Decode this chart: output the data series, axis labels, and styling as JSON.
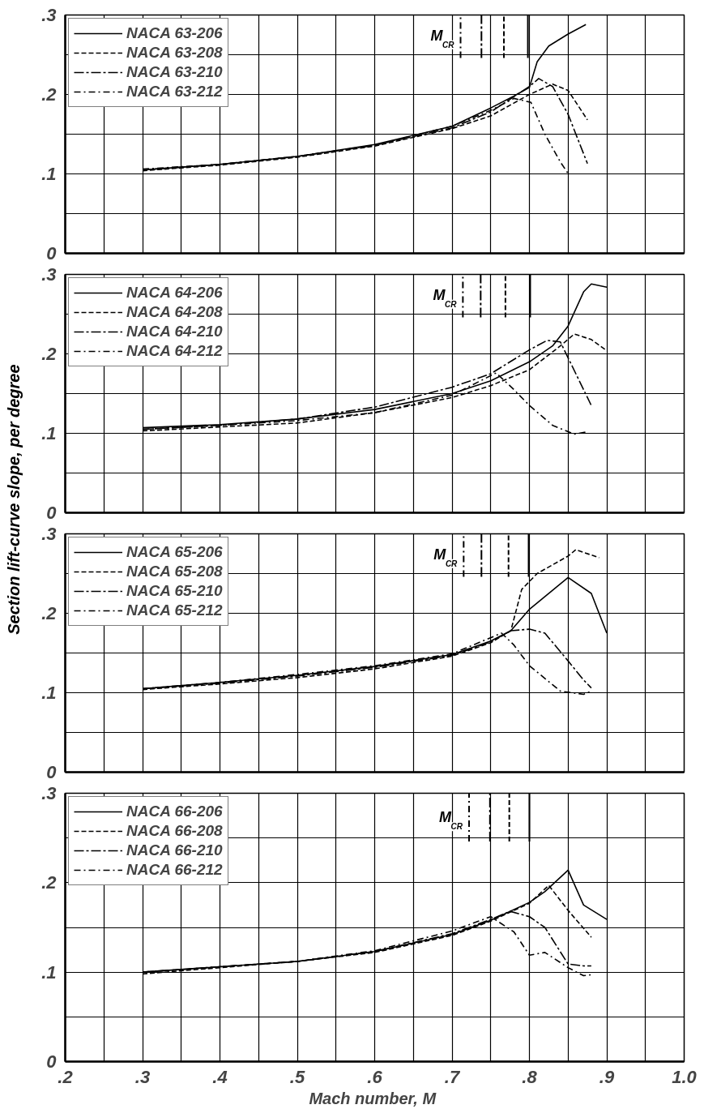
{
  "chart_data": [
    {
      "type": "line",
      "xlim": [
        0.2,
        1.0
      ],
      "ylim": [
        0,
        0.3
      ],
      "grid": true,
      "legend": "top left",
      "tick_labels": "y",
      "xticks": [
        {
          "value": 0.2,
          "label": null
        },
        {
          "value": 0.25,
          "label": null
        },
        {
          "value": 0.3,
          "label": null
        },
        {
          "value": 0.35,
          "label": null
        },
        {
          "value": 0.4,
          "label": null
        },
        {
          "value": 0.45,
          "label": null
        },
        {
          "value": 0.5,
          "label": null
        },
        {
          "value": 0.55,
          "label": null
        },
        {
          "value": 0.6,
          "label": null
        },
        {
          "value": 0.65,
          "label": null
        },
        {
          "value": 0.7,
          "label": null
        },
        {
          "value": 0.75,
          "label": null
        },
        {
          "value": 0.8,
          "label": null
        },
        {
          "value": 0.85,
          "label": null
        },
        {
          "value": 0.9,
          "label": null
        },
        {
          "value": 0.95,
          "label": null
        },
        {
          "value": 1.0,
          "label": null
        }
      ],
      "yticks": [
        0,
        {
          "value": 0.05,
          "label": null
        },
        {
          "value": 0.1,
          "label": ".1"
        },
        {
          "value": 0.15,
          "label": null
        },
        {
          "value": 0.2,
          "label": ".2"
        },
        {
          "value": 0.25,
          "label": null
        },
        {
          "value": 0.3,
          "label": ".3"
        }
      ],
      "series": [
        {
          "name": "NACA 63-206",
          "color": "#000000",
          "line_style": "solid",
          "x": [
            0.3,
            0.4,
            0.5,
            0.6,
            0.7,
            0.75,
            0.78,
            0.8,
            0.81,
            0.825,
            0.85,
            0.873
          ],
          "values": [
            0.105,
            0.112,
            0.122,
            0.137,
            0.16,
            0.183,
            0.198,
            0.209,
            0.241,
            0.261,
            0.276,
            0.288
          ]
        },
        {
          "name": "NACA 63-208",
          "color": "#000000",
          "line_style": "dashed",
          "x": [
            0.3,
            0.4,
            0.5,
            0.6,
            0.7,
            0.75,
            0.8,
            0.83,
            0.85,
            0.875
          ],
          "values": [
            0.104,
            0.111,
            0.121,
            0.135,
            0.157,
            0.173,
            0.2,
            0.213,
            0.205,
            0.168
          ]
        },
        {
          "name": "NACA 63-210",
          "color": "#000000",
          "line_style": "dashdot",
          "x": [
            0.3,
            0.4,
            0.5,
            0.6,
            0.7,
            0.75,
            0.8,
            0.812,
            0.83,
            0.85,
            0.875
          ],
          "values": [
            0.105,
            0.112,
            0.122,
            0.136,
            0.158,
            0.178,
            0.21,
            0.22,
            0.21,
            0.175,
            0.113
          ]
        },
        {
          "name": "NACA 63-212",
          "color": "#000000",
          "line_style": "longdash",
          "x": [
            0.3,
            0.4,
            0.5,
            0.6,
            0.7,
            0.75,
            0.78,
            0.802,
            0.82,
            0.84,
            0.851
          ],
          "values": [
            0.106,
            0.112,
            0.122,
            0.136,
            0.16,
            0.18,
            0.195,
            0.19,
            0.15,
            0.115,
            0.099
          ]
        }
      ],
      "ref_lines": [
        {
          "axis": "x",
          "value": 0.711,
          "label": "M$_{CR}$",
          "line_style": "longdash"
        },
        {
          "axis": "x",
          "value": 0.738,
          "line_style": "dashdot"
        },
        {
          "axis": "x",
          "value": 0.767,
          "line_style": "dashed"
        },
        {
          "axis": "x",
          "value": 0.798,
          "line_style": "solid"
        }
      ]
    },
    {
      "type": "line",
      "xlim": [
        0.2,
        1.0
      ],
      "ylim": [
        0,
        0.3
      ],
      "grid": true,
      "legend": "top left",
      "tick_labels": "y",
      "xticks": [
        {
          "value": 0.2,
          "label": null
        },
        {
          "value": 0.25,
          "label": null
        },
        {
          "value": 0.3,
          "label": null
        },
        {
          "value": 0.35,
          "label": null
        },
        {
          "value": 0.4,
          "label": null
        },
        {
          "value": 0.45,
          "label": null
        },
        {
          "value": 0.5,
          "label": null
        },
        {
          "value": 0.55,
          "label": null
        },
        {
          "value": 0.6,
          "label": null
        },
        {
          "value": 0.65,
          "label": null
        },
        {
          "value": 0.7,
          "label": null
        },
        {
          "value": 0.75,
          "label": null
        },
        {
          "value": 0.8,
          "label": null
        },
        {
          "value": 0.85,
          "label": null
        },
        {
          "value": 0.9,
          "label": null
        },
        {
          "value": 0.95,
          "label": null
        },
        {
          "value": 1.0,
          "label": null
        }
      ],
      "yticks": [
        0,
        {
          "value": 0.05,
          "label": null
        },
        {
          "value": 0.1,
          "label": ".1"
        },
        {
          "value": 0.15,
          "label": null
        },
        {
          "value": 0.2,
          "label": ".2"
        },
        {
          "value": 0.25,
          "label": null
        },
        {
          "value": 0.3,
          "label": ".3"
        }
      ],
      "series": [
        {
          "name": "NACA 64-206",
          "color": "#000000",
          "line_style": "solid",
          "x": [
            0.3,
            0.4,
            0.5,
            0.6,
            0.7,
            0.75,
            0.8,
            0.83,
            0.85,
            0.87,
            0.88,
            0.9
          ],
          "values": [
            0.107,
            0.111,
            0.118,
            0.13,
            0.15,
            0.166,
            0.19,
            0.21,
            0.235,
            0.278,
            0.288,
            0.284
          ]
        },
        {
          "name": "NACA 64-208",
          "color": "#000000",
          "line_style": "dashed",
          "x": [
            0.3,
            0.4,
            0.5,
            0.6,
            0.7,
            0.75,
            0.8,
            0.84,
            0.858,
            0.88,
            0.9
          ],
          "values": [
            0.103,
            0.108,
            0.113,
            0.126,
            0.145,
            0.16,
            0.18,
            0.21,
            0.225,
            0.218,
            0.204
          ]
        },
        {
          "name": "NACA 64-210",
          "color": "#000000",
          "line_style": "dashdot",
          "x": [
            0.3,
            0.4,
            0.5,
            0.6,
            0.7,
            0.75,
            0.8,
            0.823,
            0.84,
            0.86,
            0.88
          ],
          "values": [
            0.105,
            0.11,
            0.118,
            0.133,
            0.158,
            0.175,
            0.205,
            0.217,
            0.215,
            0.175,
            0.135
          ]
        },
        {
          "name": "NACA 64-212",
          "color": "#000000",
          "line_style": "longdash",
          "x": [
            0.3,
            0.4,
            0.5,
            0.6,
            0.7,
            0.757,
            0.78,
            0.8,
            0.83,
            0.858,
            0.876
          ],
          "values": [
            0.105,
            0.11,
            0.116,
            0.126,
            0.148,
            0.176,
            0.155,
            0.135,
            0.11,
            0.099,
            0.102
          ]
        }
      ],
      "ref_lines": [
        {
          "axis": "x",
          "value": 0.714,
          "label": "M$_{CR}$",
          "line_style": "longdash"
        },
        {
          "axis": "x",
          "value": 0.737,
          "line_style": "dashdot"
        },
        {
          "axis": "x",
          "value": 0.769,
          "line_style": "dashed"
        },
        {
          "axis": "x",
          "value": 0.801,
          "line_style": "solid"
        }
      ]
    },
    {
      "type": "line",
      "xlim": [
        0.2,
        1.0
      ],
      "ylim": [
        0,
        0.3
      ],
      "grid": true,
      "legend": "top left",
      "tick_labels": "y",
      "ylabel": "Section lift-curve slope, per degree",
      "xticks": [
        {
          "value": 0.2,
          "label": null
        },
        {
          "value": 0.25,
          "label": null
        },
        {
          "value": 0.3,
          "label": null
        },
        {
          "value": 0.35,
          "label": null
        },
        {
          "value": 0.4,
          "label": null
        },
        {
          "value": 0.45,
          "label": null
        },
        {
          "value": 0.5,
          "label": null
        },
        {
          "value": 0.55,
          "label": null
        },
        {
          "value": 0.6,
          "label": null
        },
        {
          "value": 0.65,
          "label": null
        },
        {
          "value": 0.7,
          "label": null
        },
        {
          "value": 0.75,
          "label": null
        },
        {
          "value": 0.8,
          "label": null
        },
        {
          "value": 0.85,
          "label": null
        },
        {
          "value": 0.9,
          "label": null
        },
        {
          "value": 0.95,
          "label": null
        },
        {
          "value": 1.0,
          "label": null
        }
      ],
      "yticks": [
        0,
        {
          "value": 0.05,
          "label": null
        },
        {
          "value": 0.1,
          "label": ".1"
        },
        {
          "value": 0.15,
          "label": null
        },
        {
          "value": 0.2,
          "label": ".2"
        },
        {
          "value": 0.25,
          "label": null
        },
        {
          "value": 0.3,
          "label": ".3"
        }
      ],
      "series": [
        {
          "name": "NACA 65-206",
          "color": "#000000",
          "line_style": "solid",
          "x": [
            0.3,
            0.4,
            0.5,
            0.6,
            0.7,
            0.75,
            0.776,
            0.8,
            0.85,
            0.88,
            0.9
          ],
          "values": [
            0.105,
            0.113,
            0.122,
            0.133,
            0.148,
            0.165,
            0.178,
            0.205,
            0.245,
            0.225,
            0.175
          ]
        },
        {
          "name": "NACA 65-208",
          "color": "#000000",
          "line_style": "dashed",
          "x": [
            0.3,
            0.4,
            0.5,
            0.6,
            0.7,
            0.75,
            0.776,
            0.79,
            0.81,
            0.85,
            0.86,
            0.89
          ],
          "values": [
            0.104,
            0.111,
            0.119,
            0.13,
            0.146,
            0.163,
            0.178,
            0.23,
            0.25,
            0.272,
            0.28,
            0.27
          ]
        },
        {
          "name": "NACA 65-210",
          "color": "#000000",
          "line_style": "dashdot",
          "x": [
            0.3,
            0.4,
            0.5,
            0.6,
            0.7,
            0.75,
            0.776,
            0.8,
            0.82,
            0.85,
            0.87,
            0.88
          ],
          "values": [
            0.105,
            0.112,
            0.121,
            0.132,
            0.147,
            0.164,
            0.178,
            0.18,
            0.175,
            0.14,
            0.116,
            0.106
          ]
        },
        {
          "name": "NACA 65-212",
          "color": "#000000",
          "line_style": "longdash",
          "x": [
            0.3,
            0.4,
            0.5,
            0.6,
            0.7,
            0.764,
            0.78,
            0.8,
            0.84,
            0.87,
            0.88
          ],
          "values": [
            0.105,
            0.113,
            0.123,
            0.134,
            0.149,
            0.175,
            0.16,
            0.134,
            0.102,
            0.098,
            0.102
          ]
        }
      ],
      "ref_lines": [
        {
          "axis": "x",
          "value": 0.715,
          "label": "M$_{CR}$",
          "line_style": "longdash"
        },
        {
          "axis": "x",
          "value": 0.738,
          "line_style": "dashdot"
        },
        {
          "axis": "x",
          "value": 0.773,
          "line_style": "dashed"
        },
        {
          "axis": "x",
          "value": 0.799,
          "line_style": "solid"
        }
      ]
    },
    {
      "type": "line",
      "xlim": [
        0.2,
        1.0
      ],
      "ylim": [
        0,
        0.3
      ],
      "grid": true,
      "legend": "top left",
      "xlabel": "Mach  number, M",
      "xticks": [
        {
          "value": 0.2,
          "label": ".2"
        },
        {
          "value": 0.25,
          "label": null
        },
        {
          "value": 0.3,
          "label": ".3"
        },
        {
          "value": 0.35,
          "label": null
        },
        {
          "value": 0.4,
          "label": ".4"
        },
        {
          "value": 0.45,
          "label": null
        },
        {
          "value": 0.5,
          "label": ".5"
        },
        {
          "value": 0.55,
          "label": null
        },
        {
          "value": 0.6,
          "label": ".6"
        },
        {
          "value": 0.65,
          "label": null
        },
        {
          "value": 0.7,
          "label": ".7"
        },
        {
          "value": 0.75,
          "label": null
        },
        {
          "value": 0.8,
          "label": ".8"
        },
        {
          "value": 0.85,
          "label": null
        },
        {
          "value": 0.9,
          "label": ".9"
        },
        {
          "value": 0.95,
          "label": null
        },
        {
          "value": 1.0,
          "label": "1.0"
        }
      ],
      "yticks": [
        0,
        {
          "value": 0.05,
          "label": null
        },
        {
          "value": 0.1,
          "label": ".1"
        },
        {
          "value": 0.15,
          "label": null
        },
        {
          "value": 0.2,
          "label": ".2"
        },
        {
          "value": 0.25,
          "label": null
        },
        {
          "value": 0.3,
          "label": ".3"
        }
      ],
      "series": [
        {
          "name": "NACA 66-206",
          "color": "#000000",
          "line_style": "solid",
          "x": [
            0.3,
            0.4,
            0.5,
            0.6,
            0.7,
            0.75,
            0.8,
            0.82,
            0.85,
            0.87,
            0.9
          ],
          "values": [
            0.1,
            0.106,
            0.112,
            0.123,
            0.142,
            0.158,
            0.178,
            0.19,
            0.214,
            0.175,
            0.159
          ]
        },
        {
          "name": "NACA 66-208",
          "color": "#000000",
          "line_style": "dashed",
          "x": [
            0.3,
            0.4,
            0.5,
            0.6,
            0.7,
            0.75,
            0.8,
            0.825,
            0.85,
            0.88
          ],
          "values": [
            0.098,
            0.105,
            0.112,
            0.122,
            0.141,
            0.157,
            0.177,
            0.197,
            0.169,
            0.139
          ]
        },
        {
          "name": "NACA 66-210",
          "color": "#000000",
          "line_style": "dashdot",
          "x": [
            0.3,
            0.4,
            0.5,
            0.6,
            0.7,
            0.75,
            0.775,
            0.8,
            0.82,
            0.85,
            0.87,
            0.88
          ],
          "values": [
            0.1,
            0.106,
            0.112,
            0.123,
            0.143,
            0.159,
            0.168,
            0.162,
            0.15,
            0.109,
            0.107,
            0.107
          ]
        },
        {
          "name": "NACA 66-212",
          "color": "#000000",
          "line_style": "longdash",
          "x": [
            0.3,
            0.4,
            0.5,
            0.6,
            0.7,
            0.75,
            0.78,
            0.8,
            0.82,
            0.85,
            0.87,
            0.88
          ],
          "values": [
            0.1,
            0.106,
            0.112,
            0.124,
            0.146,
            0.162,
            0.145,
            0.119,
            0.122,
            0.105,
            0.096,
            0.097
          ]
        }
      ],
      "ref_lines": [
        {
          "axis": "x",
          "value": 0.722,
          "label": "M$_{CR}$",
          "line_style": "longdash"
        },
        {
          "axis": "x",
          "value": 0.749,
          "line_style": "dashdot"
        },
        {
          "axis": "x",
          "value": 0.774,
          "line_style": "dashed"
        },
        {
          "axis": "x",
          "value": 0.8,
          "line_style": "solid"
        }
      ]
    }
  ]
}
